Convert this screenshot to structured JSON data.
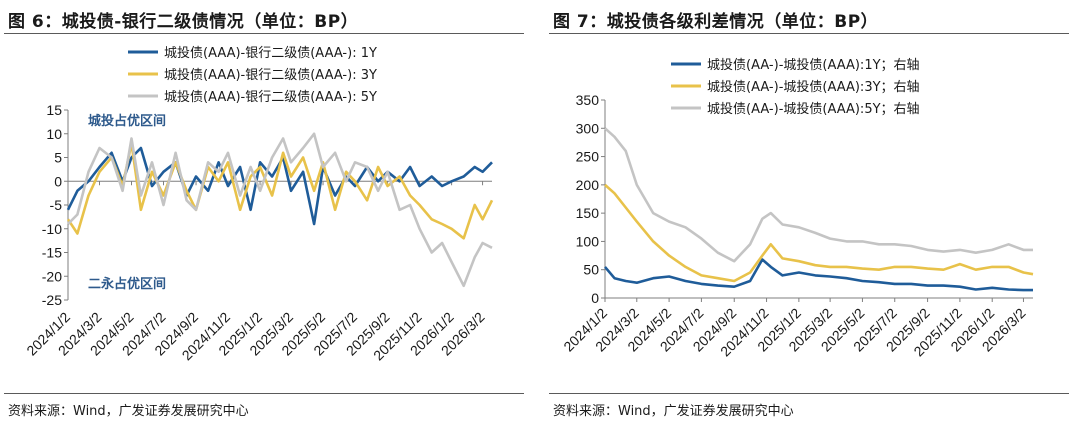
{
  "left": {
    "title": "图 6：城投债-银行二级债情况（单位：BP）",
    "source": "资料来源：Wind，广发证券发展研究中心",
    "annotations": [
      "城投占优区间",
      "二永占优区间"
    ],
    "chart_data": {
      "type": "line",
      "title": "图 6：城投债-银行二级债情况（单位：BP）",
      "xlabel": "",
      "ylabel": "",
      "ylim": [
        -25,
        15
      ],
      "yticks": [
        -25,
        -20,
        -15,
        -10,
        -5,
        0,
        5,
        10,
        15
      ],
      "xlim": [
        "2024-01-02",
        "2026-03-20"
      ],
      "xticks": [
        "2024/1/2",
        "2024/3/2",
        "2024/5/2",
        "2024/7/2",
        "2024/9/2",
        "2024/11/2",
        "2025/1/2",
        "2025/3/2",
        "2025/5/2",
        "2025/7/2",
        "2025/9/2",
        "2025/11/2",
        "2026/1/2",
        "2026/3/2"
      ],
      "grid": false,
      "legend": "top-center",
      "series": [
        {
          "name": "城投债(AAA)-银行二级债(AAA-): 1Y",
          "color": "#1f5c99",
          "x": [
            "2024-01-02",
            "2024-01-20",
            "2024-02-10",
            "2024-03-02",
            "2024-03-25",
            "2024-04-15",
            "2024-05-02",
            "2024-05-20",
            "2024-06-10",
            "2024-07-02",
            "2024-07-25",
            "2024-08-15",
            "2024-09-02",
            "2024-09-25",
            "2024-10-15",
            "2024-11-02",
            "2024-11-25",
            "2024-12-15",
            "2025-01-02",
            "2025-01-25",
            "2025-02-15",
            "2025-03-02",
            "2025-03-25",
            "2025-04-15",
            "2025-05-02",
            "2025-05-25",
            "2025-06-15",
            "2025-07-02",
            "2025-07-25",
            "2025-08-15",
            "2025-09-02",
            "2025-09-25",
            "2025-10-15",
            "2025-11-02",
            "2025-11-25",
            "2025-12-15",
            "2026-01-02",
            "2026-01-25",
            "2026-02-15",
            "2026-03-02",
            "2026-03-20"
          ],
          "y": [
            -6,
            -2,
            0,
            3,
            6,
            0,
            5,
            7,
            -1,
            2,
            4,
            -3,
            1,
            -2,
            4,
            -1,
            3,
            -6,
            4,
            1,
            5,
            -2,
            2,
            -9,
            3,
            -3,
            1,
            -1,
            3,
            0,
            2,
            0,
            3,
            -1,
            1,
            -1,
            0,
            1,
            3,
            2,
            4
          ]
        },
        {
          "name": "城投债(AAA)-银行二级债(AAA-): 3Y",
          "color": "#e8c24a",
          "x": [
            "2024-01-02",
            "2024-01-20",
            "2024-02-10",
            "2024-03-02",
            "2024-03-25",
            "2024-04-15",
            "2024-05-02",
            "2024-05-20",
            "2024-06-10",
            "2024-07-02",
            "2024-07-25",
            "2024-08-15",
            "2024-09-02",
            "2024-09-25",
            "2024-10-15",
            "2024-11-02",
            "2024-11-25",
            "2024-12-15",
            "2025-01-02",
            "2025-01-25",
            "2025-02-15",
            "2025-03-02",
            "2025-03-25",
            "2025-04-15",
            "2025-05-02",
            "2025-05-25",
            "2025-06-15",
            "2025-07-02",
            "2025-07-25",
            "2025-08-15",
            "2025-09-02",
            "2025-09-25",
            "2025-10-15",
            "2025-11-02",
            "2025-11-25",
            "2025-12-15",
            "2026-01-02",
            "2026-01-25",
            "2026-02-15",
            "2026-03-02",
            "2026-03-20"
          ],
          "y": [
            -8,
            -11,
            -3,
            2,
            5,
            -1,
            8,
            -6,
            2,
            -3,
            4,
            -2,
            -6,
            3,
            0,
            4,
            -6,
            1,
            3,
            -3,
            6,
            1,
            5,
            -2,
            4,
            -6,
            2,
            0,
            -4,
            3,
            -1,
            1,
            -3,
            -5,
            -8,
            -9,
            -10,
            -12,
            -5,
            -8,
            -4
          ]
        },
        {
          "name": "城投债(AAA)-银行二级债(AAA-): 5Y",
          "color": "#c4c4c4",
          "x": [
            "2024-01-02",
            "2024-01-20",
            "2024-02-10",
            "2024-03-02",
            "2024-03-25",
            "2024-04-15",
            "2024-05-02",
            "2024-05-20",
            "2024-06-10",
            "2024-07-02",
            "2024-07-25",
            "2024-08-15",
            "2024-09-02",
            "2024-09-25",
            "2024-10-15",
            "2024-11-02",
            "2024-11-25",
            "2024-12-15",
            "2025-01-02",
            "2025-01-25",
            "2025-02-15",
            "2025-03-02",
            "2025-03-25",
            "2025-04-15",
            "2025-05-02",
            "2025-05-25",
            "2025-06-15",
            "2025-07-02",
            "2025-07-25",
            "2025-08-15",
            "2025-09-02",
            "2025-09-25",
            "2025-10-15",
            "2025-11-02",
            "2025-11-25",
            "2025-12-15",
            "2026-01-02",
            "2026-01-25",
            "2026-02-15",
            "2026-03-02",
            "2026-03-20"
          ],
          "y": [
            -9,
            -7,
            2,
            7,
            5,
            -2,
            9,
            -3,
            4,
            -5,
            6,
            -4,
            -6,
            4,
            2,
            6,
            -3,
            3,
            -2,
            5,
            9,
            4,
            7,
            10,
            3,
            6,
            0,
            4,
            3,
            -2,
            2,
            -6,
            -5,
            -10,
            -15,
            -13,
            -17,
            -22,
            -16,
            -13,
            -14
          ]
        }
      ]
    }
  },
  "right": {
    "title": "图 7：城投债各级利差情况（单位：BP）",
    "source": "资料来源：Wind，广发证券发展研究中心",
    "chart_data": {
      "type": "line",
      "title": "图 7：城投债各级利差情况（单位：BP）",
      "xlabel": "",
      "ylabel": "",
      "ylim": [
        0,
        350
      ],
      "yticks": [
        0,
        50,
        100,
        150,
        200,
        250,
        300,
        350
      ],
      "xlim": [
        "2024-01-02",
        "2026-03-20"
      ],
      "xticks": [
        "2024/1/2",
        "2024/3/2",
        "2024/5/2",
        "2024/7/2",
        "2024/9/2",
        "2024/11/2",
        "2025/1/2",
        "2025/3/2",
        "2025/5/2",
        "2025/7/2",
        "2025/9/2",
        "2025/11/2",
        "2026/1/2",
        "2026/3/2"
      ],
      "grid": false,
      "legend": "top-right",
      "series": [
        {
          "name": "城投债(AA-)-城投债(AAA):1Y；右轴",
          "color": "#1f5c99",
          "x": [
            "2024-01-02",
            "2024-01-20",
            "2024-02-10",
            "2024-03-02",
            "2024-04-02",
            "2024-05-02",
            "2024-06-02",
            "2024-07-02",
            "2024-08-02",
            "2024-09-02",
            "2024-10-02",
            "2024-10-25",
            "2024-11-10",
            "2024-12-02",
            "2025-01-02",
            "2025-02-02",
            "2025-03-02",
            "2025-04-02",
            "2025-05-02",
            "2025-06-02",
            "2025-07-02",
            "2025-08-02",
            "2025-09-02",
            "2025-10-02",
            "2025-11-02",
            "2025-12-02",
            "2026-01-02",
            "2026-02-02",
            "2026-03-02",
            "2026-03-20"
          ],
          "y": [
            55,
            35,
            30,
            27,
            35,
            38,
            30,
            25,
            22,
            20,
            30,
            68,
            55,
            40,
            45,
            40,
            38,
            35,
            30,
            28,
            25,
            25,
            22,
            22,
            20,
            15,
            18,
            15,
            14,
            14
          ]
        },
        {
          "name": "城投债(AA-)-城投债(AAA):3Y；右轴",
          "color": "#e8c24a",
          "x": [
            "2024-01-02",
            "2024-01-20",
            "2024-02-10",
            "2024-03-02",
            "2024-04-02",
            "2024-05-02",
            "2024-06-02",
            "2024-07-02",
            "2024-08-02",
            "2024-09-02",
            "2024-10-02",
            "2024-10-25",
            "2024-11-10",
            "2024-12-02",
            "2025-01-02",
            "2025-02-02",
            "2025-03-02",
            "2025-04-02",
            "2025-05-02",
            "2025-06-02",
            "2025-07-02",
            "2025-08-02",
            "2025-09-02",
            "2025-10-02",
            "2025-11-02",
            "2025-12-02",
            "2026-01-02",
            "2026-02-02",
            "2026-03-02",
            "2026-03-20"
          ],
          "y": [
            200,
            185,
            160,
            135,
            100,
            75,
            55,
            40,
            35,
            30,
            45,
            75,
            95,
            70,
            65,
            58,
            55,
            55,
            52,
            50,
            55,
            55,
            52,
            50,
            60,
            50,
            55,
            55,
            45,
            42
          ]
        },
        {
          "name": "城投债(AA-)-城投债(AAA):5Y；右轴",
          "color": "#c4c4c4",
          "x": [
            "2024-01-02",
            "2024-01-20",
            "2024-02-10",
            "2024-03-02",
            "2024-04-02",
            "2024-05-02",
            "2024-06-02",
            "2024-07-02",
            "2024-08-02",
            "2024-09-02",
            "2024-10-02",
            "2024-10-25",
            "2024-11-10",
            "2024-12-02",
            "2025-01-02",
            "2025-02-02",
            "2025-03-02",
            "2025-04-02",
            "2025-05-02",
            "2025-06-02",
            "2025-07-02",
            "2025-08-02",
            "2025-09-02",
            "2025-10-02",
            "2025-11-02",
            "2025-12-02",
            "2026-01-02",
            "2026-02-02",
            "2026-03-02",
            "2026-03-20"
          ],
          "y": [
            300,
            285,
            260,
            200,
            150,
            135,
            125,
            105,
            80,
            65,
            95,
            140,
            150,
            130,
            125,
            115,
            105,
            100,
            100,
            95,
            95,
            92,
            85,
            82,
            85,
            80,
            85,
            95,
            85,
            85
          ]
        }
      ]
    }
  }
}
